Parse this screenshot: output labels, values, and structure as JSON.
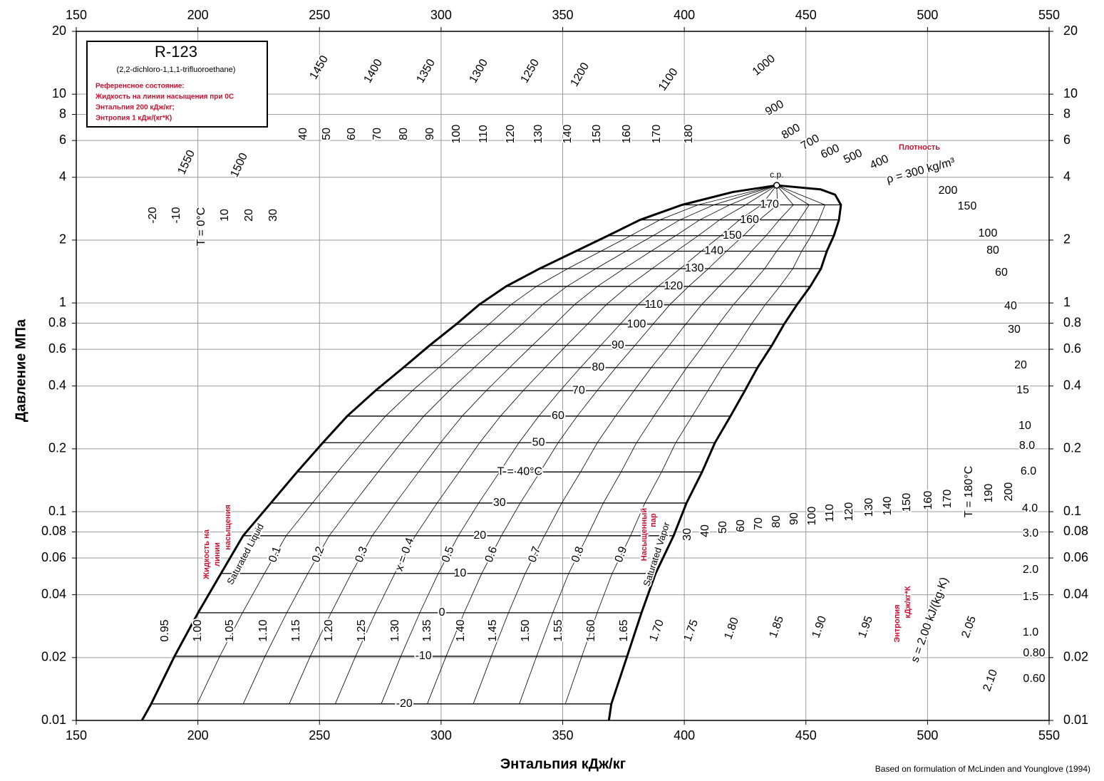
{
  "chart_data": {
    "type": "ph-diagram",
    "title": "R-123",
    "subtitle": "(2,2-dichloro-1,1,1-trifluoroethane)",
    "reference_note": [
      "Референсное состояние:",
      "Жидкость на линии насыщения при 0С",
      "Энтальпия 200 кДж/кг;",
      "Энтропия 1 кДж/(кг*К)"
    ],
    "x_label": "Энтальпия кДж/кг",
    "y_label": "Давление МПа",
    "footnote": "Based on formulation of McLinden and Younglove (1994)",
    "xlim": [
      150,
      550
    ],
    "xticks": [
      150,
      200,
      250,
      300,
      350,
      400,
      450,
      500,
      550
    ],
    "ylim": [
      0.01,
      20
    ],
    "yticks": [
      0.01,
      0.02,
      0.04,
      0.06,
      0.08,
      0.1,
      0.2,
      0.4,
      0.6,
      0.8,
      1,
      2,
      4,
      6,
      8,
      10,
      20
    ],
    "log_y": true,
    "grid": true,
    "series": [
      {
        "name": "Saturated Liquid",
        "color": "#000000",
        "x": [
          177,
          180.8,
          190.4,
          200.1,
          209.5,
          218.6,
          230,
          240.8,
          251.4,
          261.4,
          273,
          284.5,
          295.3,
          306.2,
          315.6,
          326.7,
          340.5,
          355.4,
          368.6,
          381.8,
          399.1,
          420,
          438
        ],
        "values": [
          0.01,
          0.012,
          0.0203,
          0.0328,
          0.0506,
          0.0767,
          0.11,
          0.155,
          0.214,
          0.287,
          0.38,
          0.49,
          0.626,
          0.79,
          0.98,
          1.2,
          1.46,
          1.77,
          2.1,
          2.5,
          2.95,
          3.4,
          3.66
        ]
      },
      {
        "name": "Saturated Vapor",
        "color": "#000000",
        "x": [
          369,
          370,
          376.5,
          382.4,
          388.2,
          395.6,
          400.9,
          407.3,
          412.6,
          419,
          424.9,
          430.1,
          436,
          441,
          446.3,
          451.8,
          456.2,
          458.6,
          461.5,
          463.6,
          464.4,
          462,
          456,
          438
        ],
        "values": [
          0.01,
          0.012,
          0.0203,
          0.0328,
          0.0506,
          0.0767,
          0.11,
          0.155,
          0.214,
          0.287,
          0.38,
          0.49,
          0.626,
          0.79,
          0.98,
          1.2,
          1.46,
          1.77,
          2.1,
          2.5,
          2.95,
          3.3,
          3.5,
          3.66
        ]
      }
    ],
    "critical_point_label": "c.p.",
    "isotherms": [
      {
        "label": "-20",
        "p": 0.012
      },
      {
        "label": "-10",
        "p": 0.0203
      },
      {
        "label": "0",
        "p": 0.0328
      },
      {
        "label": "10",
        "p": 0.0506
      },
      {
        "label": "20",
        "p": 0.0767
      },
      {
        "label": "30",
        "p": 0.11
      },
      {
        "label": "T = 40°C",
        "p": 0.155
      },
      {
        "label": "50",
        "p": 0.214
      },
      {
        "label": "60",
        "p": 0.287
      },
      {
        "label": "70",
        "p": 0.38
      },
      {
        "label": "80",
        "p": 0.49
      },
      {
        "label": "90",
        "p": 0.626
      },
      {
        "label": "100",
        "p": 0.79
      },
      {
        "label": "110",
        "p": 0.98
      },
      {
        "label": "120",
        "p": 1.2
      },
      {
        "label": "130",
        "p": 1.46
      },
      {
        "label": "140",
        "p": 1.77
      },
      {
        "label": "150",
        "p": 2.1
      },
      {
        "label": "160",
        "p": 2.5
      },
      {
        "label": "170",
        "p": 2.95
      }
    ],
    "quality": [
      0.1,
      0.2,
      0.3,
      {
        "value": 0.4,
        "label": "x = 0.4"
      },
      0.5,
      0.6,
      0.7,
      0.8,
      0.9
    ],
    "compressed_liquid_temps": [
      "-20",
      "-10",
      "T = 0°C",
      "10",
      "20",
      "30",
      "40",
      "50",
      "60",
      "70",
      "80",
      "90",
      "100",
      "110",
      "120",
      "130",
      "140",
      "150",
      "160",
      "170",
      "180"
    ],
    "superheated_temps": [
      "30",
      "40",
      "50",
      "60",
      "70",
      "80",
      "90",
      "100",
      "110",
      "120",
      "130",
      "140",
      "150",
      "160",
      "170",
      "T = 180°C",
      "190",
      "200"
    ],
    "isentrope_labels": [
      "0.95",
      "1.00",
      "1.05",
      "1.10",
      "1.15",
      "1.20",
      "1.25",
      "1.30",
      "1.35",
      "1.40",
      "1.45",
      "1.50",
      "1.55",
      "1.60",
      "1.65",
      "1.70",
      "1.75",
      "1.80",
      "1.85",
      "1.90",
      "1.95",
      "s = 2.00 kJ/(kg·K)",
      "2.05",
      "2.10"
    ],
    "density_labels": [
      "1550",
      "1500",
      "1450",
      "1400",
      "1350",
      "1300",
      "1250",
      "1200",
      "1100",
      "1000",
      "900",
      "800",
      "700",
      "600",
      "500",
      "400",
      "ρ = 300 kg/m³",
      "200",
      "150",
      "100",
      "80",
      "60",
      "40",
      "30",
      "20",
      "15",
      "10",
      "8.0",
      "6.0",
      "4.0",
      "3.0",
      "2.0",
      "1.5",
      "1.0",
      "0.80",
      "0.60"
    ],
    "red_labels": {
      "saturated_liquid_ru": [
        "Жидкость на",
        "линии",
        "насыщения"
      ],
      "saturated_vapor_ru": [
        "Насыщенный",
        "пар"
      ],
      "density_ru": "Плотность",
      "entropy_ru": [
        "Энтропия",
        "кДж/кг*К"
      ]
    }
  }
}
